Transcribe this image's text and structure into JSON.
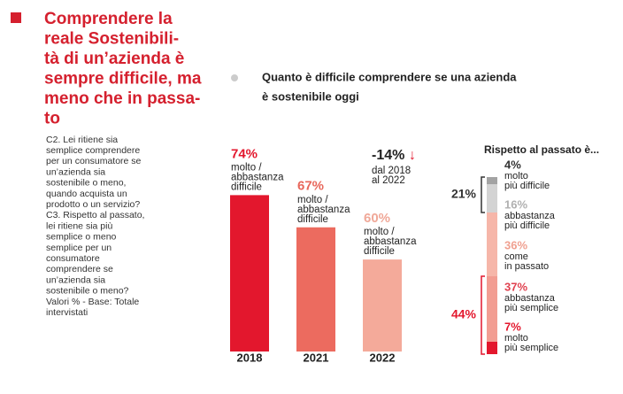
{
  "header": {
    "title_lines": [
      "Comprendere la",
      "reale Sostenibili-",
      "tà di un’azienda è",
      "sempre difficile, ma",
      "meno che in passa-",
      "to"
    ],
    "body_lines": [
      "C2. Lei ritiene sia",
      "semplice comprendere",
      "per un consumatore se",
      "un’azienda sia",
      "sostenibile o meno,",
      "quando acquista un",
      "prodotto o un servizio?",
      "C3. Rispetto al passato,",
      "lei ritiene sia più",
      "semplice o meno",
      "semplice per un",
      "consumatore",
      "comprendere se",
      "un’azienda sia",
      "sostenibile o meno?",
      "Valori % - Base: Totale",
      "intervistati"
    ]
  },
  "chart_data": [
    {
      "type": "bar",
      "subtitle_lines": [
        "Quanto è difficile comprendere se una azienda",
        "è sostenibile oggi"
      ],
      "categories": [
        "2018",
        "2021",
        "2022"
      ],
      "values": [
        74,
        67,
        60
      ],
      "value_labels": [
        "74%",
        "67%",
        "60%"
      ],
      "colors": [
        "#e3172d",
        "#ec6b5f",
        "#f4aa9a"
      ],
      "label_colors": [
        "#e3172d",
        "#e8675b",
        "#f0a898"
      ],
      "bar_label_lines": [
        "molto /",
        "abbastanza",
        "difficile"
      ],
      "annotation": {
        "value": -14,
        "label": "-14%",
        "arrow": "↓",
        "lines": [
          "dal 2018",
          "al 2022"
        ]
      },
      "ylim": [
        40,
        76
      ]
    },
    {
      "type": "stacked-bar",
      "title": "Rispetto al passato è...",
      "series": [
        {
          "name_lines": [
            "molto",
            "più difficile"
          ],
          "values": [
            4
          ],
          "value_labels": [
            "4%"
          ],
          "color": "#a3a3a3",
          "label_color": "#333333"
        },
        {
          "name_lines": [
            "abbastanza",
            "più difficile"
          ],
          "values": [
            16
          ],
          "value_labels": [
            "16%"
          ],
          "color": "#d3d3d3",
          "label_color": "#b0b0b0"
        },
        {
          "name_lines": [
            "come",
            "in passato"
          ],
          "values": [
            36
          ],
          "value_labels": [
            "36%"
          ],
          "color": "#f6b6a9",
          "label_color": "#f0a090"
        },
        {
          "name_lines": [
            "abbastanza",
            "più semplice"
          ],
          "values": [
            37
          ],
          "value_labels": [
            "37%"
          ],
          "color": "#f29d92",
          "label_color": "#e0414f"
        },
        {
          "name_lines": [
            "molto",
            "più semplice"
          ],
          "values": [
            7
          ],
          "value_labels": [
            "7%"
          ],
          "color": "#e3172d",
          "label_color": "#e3172d"
        }
      ],
      "groups": [
        {
          "value": 21,
          "label": "21%",
          "color": "#333333",
          "from": 0,
          "to": 1
        },
        {
          "value": 44,
          "label": "44%",
          "color": "#e3172d",
          "from": 3,
          "to": 4
        }
      ],
      "ylim": [
        0,
        100
      ]
    }
  ]
}
